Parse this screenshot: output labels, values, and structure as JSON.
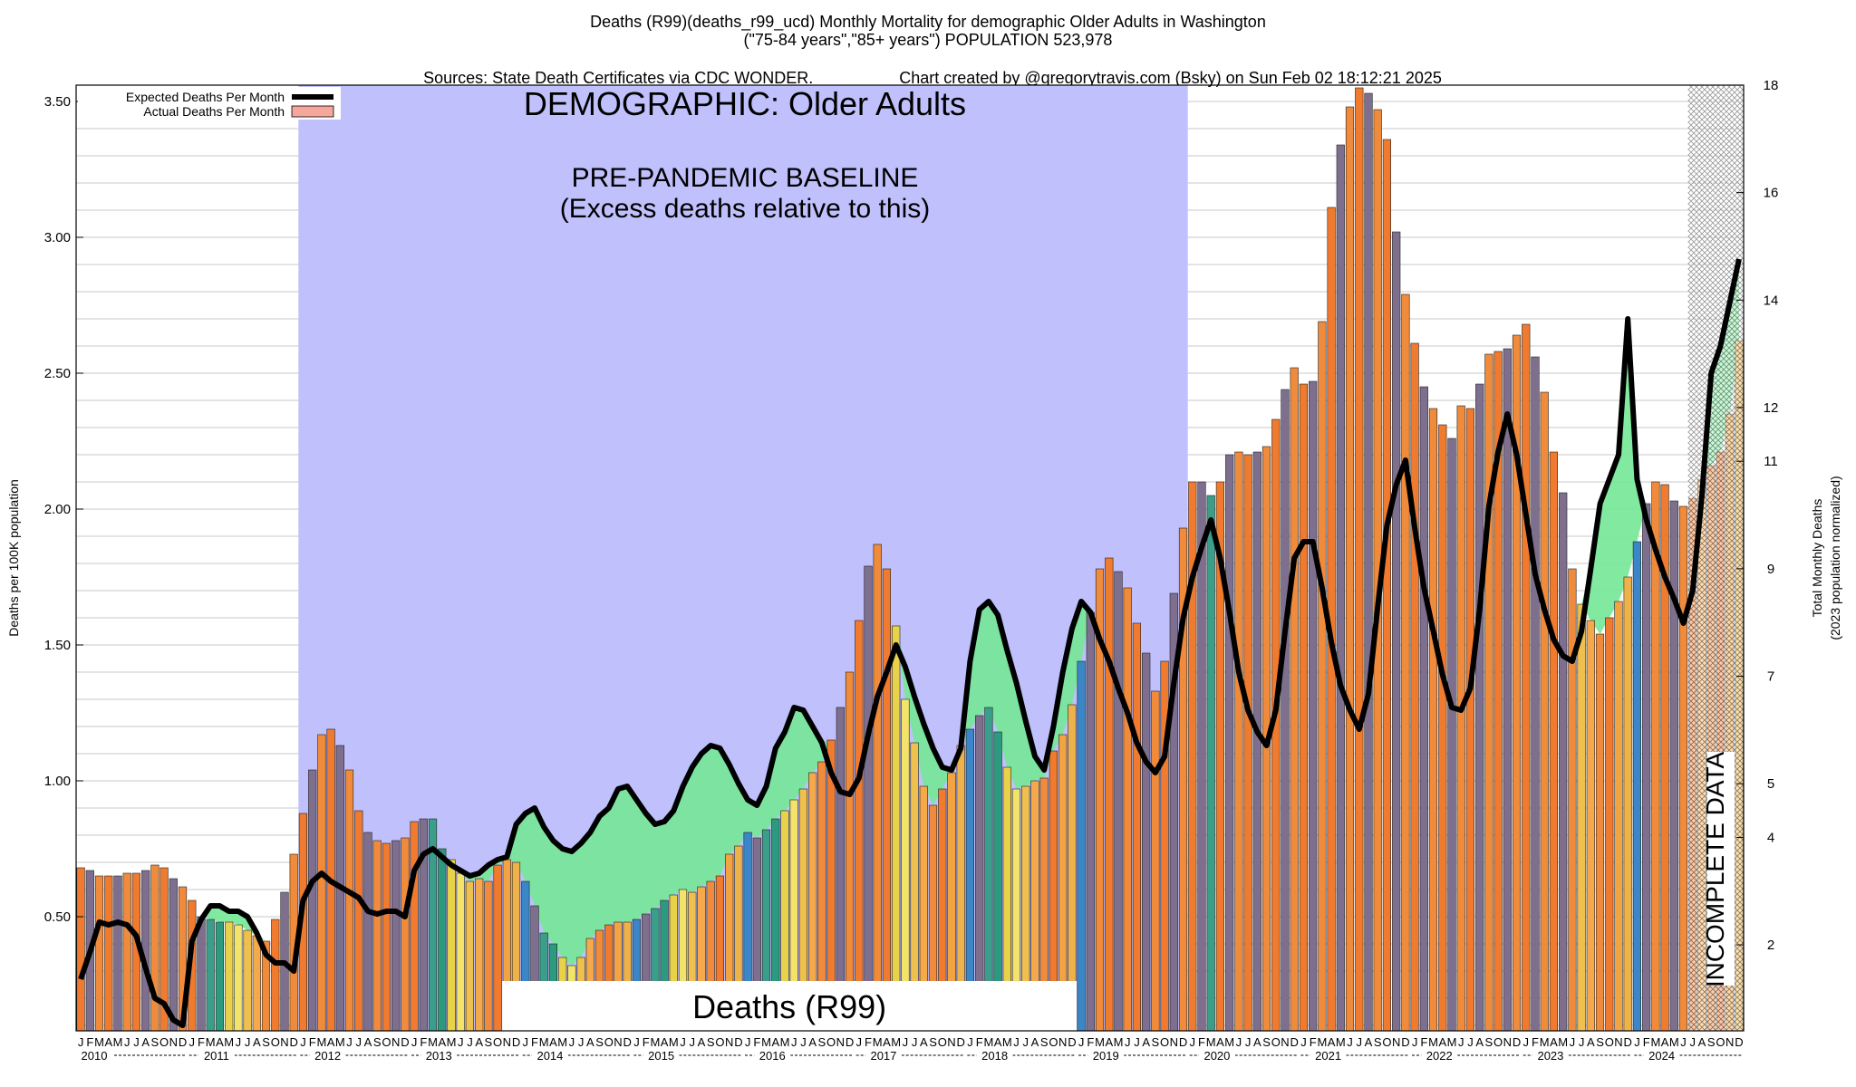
{
  "header": {
    "line1": "Deaths (R99)(deaths_r99_ucd) Monthly Mortality for demographic Older Adults in Washington",
    "line2": "(\"75-84 years\",\"85+ years\") POPULATION 523,978",
    "line3_left": "Sources: State Death Certificates via CDC WONDER.",
    "line3_right": "Chart created by @gregorytravis.com (Bsky) on Sun Feb 02 18:12:21 2025"
  },
  "chart_data": {
    "type": "bar",
    "title": "DEMOGRAPHIC: Older Adults",
    "baseline_label_1": "PRE-PANDEMIC BASELINE",
    "baseline_label_2": "(Excess deaths relative to this)",
    "bottom_label": "Deaths (R99)",
    "incomplete_label": "INCOMPLETE DATA",
    "ylabel": "Deaths per 100K population",
    "ylabel_right_1": "Total Monthly Deaths",
    "ylabel_right_2": "(2023 population normalized)",
    "ylim": [
      0.08,
      3.56
    ],
    "yticks": [
      0.5,
      1.0,
      1.5,
      2.0,
      2.5,
      3.0,
      3.5
    ],
    "ytick_labels": [
      "0.50",
      "1.00",
      "1.50",
      "2.00",
      "2.50",
      "3.00",
      "3.50"
    ],
    "y2ticks": [
      2,
      4,
      5,
      7,
      9,
      11,
      12,
      14,
      16,
      18
    ],
    "y2tick_labels": [
      "2",
      "4",
      "5",
      "7",
      "9",
      "11",
      "12",
      "14",
      "16",
      "18"
    ],
    "month_letters": [
      "J",
      "F",
      "M",
      "A",
      "M",
      "J",
      "J",
      "A",
      "S",
      "O",
      "N",
      "D"
    ],
    "years": [
      "2010",
      "2011",
      "2012",
      "2013",
      "2014",
      "2015",
      "2016",
      "2017",
      "2018",
      "2019",
      "2020",
      "2021",
      "2022",
      "2023",
      "2024"
    ],
    "legend": [
      {
        "label": "Expected Deaths Per Month",
        "color": "#000000"
      },
      {
        "label": "Actual Deaths Per Month",
        "color": "#f4a79a"
      }
    ],
    "baseline_period": {
      "start_month_index": 24,
      "end_month_index": 119
    },
    "incomplete_from_month_index": 174,
    "actual_deaths": [
      0.68,
      0.67,
      0.65,
      0.65,
      0.65,
      0.66,
      0.66,
      0.67,
      0.69,
      0.68,
      0.64,
      0.61,
      0.56,
      0.5,
      0.49,
      0.48,
      0.48,
      0.47,
      0.45,
      0.43,
      0.41,
      0.49,
      0.59,
      0.73,
      0.88,
      1.04,
      1.17,
      1.19,
      1.13,
      1.04,
      0.89,
      0.81,
      0.78,
      0.77,
      0.78,
      0.79,
      0.85,
      0.86,
      0.86,
      0.75,
      0.71,
      0.66,
      0.63,
      0.64,
      0.63,
      0.69,
      0.71,
      0.7,
      0.63,
      0.54,
      0.44,
      0.4,
      0.35,
      0.32,
      0.35,
      0.42,
      0.45,
      0.47,
      0.48,
      0.48,
      0.49,
      0.51,
      0.53,
      0.56,
      0.58,
      0.6,
      0.59,
      0.61,
      0.63,
      0.65,
      0.73,
      0.76,
      0.81,
      0.79,
      0.82,
      0.86,
      0.89,
      0.93,
      0.97,
      1.03,
      1.07,
      1.15,
      1.27,
      1.4,
      1.59,
      1.79,
      1.87,
      1.78,
      1.57,
      1.3,
      1.14,
      0.98,
      0.91,
      0.97,
      1.03,
      1.13,
      1.19,
      1.24,
      1.27,
      1.18,
      1.05,
      0.97,
      0.98,
      1.0,
      1.01,
      1.11,
      1.17,
      1.28,
      1.44,
      1.62,
      1.78,
      1.82,
      1.77,
      1.71,
      1.58,
      1.47,
      1.33,
      1.44,
      1.69,
      1.93,
      2.1,
      2.1,
      2.05,
      2.1,
      2.2,
      2.21,
      2.2,
      2.21,
      2.23,
      2.33,
      2.44,
      2.52,
      2.46,
      2.47,
      2.69,
      3.11,
      3.34,
      3.48,
      3.55,
      3.53,
      3.47,
      3.36,
      3.02,
      2.79,
      2.61,
      2.45,
      2.37,
      2.31,
      2.26,
      2.38,
      2.37,
      2.46,
      2.57,
      2.58,
      2.59,
      2.64,
      2.68,
      2.56,
      2.43,
      2.21,
      2.06,
      1.78,
      1.65,
      1.59,
      1.54,
      1.6,
      1.66,
      1.75,
      1.88,
      2.02,
      2.1,
      2.09,
      2.03,
      2.01,
      2.04,
      2.11,
      2.16,
      2.21,
      2.35,
      2.62
    ],
    "expected_deaths": [
      0.27,
      0.37,
      0.48,
      0.47,
      0.48,
      0.47,
      0.43,
      0.31,
      0.2,
      0.18,
      0.12,
      0.1,
      0.41,
      0.49,
      0.54,
      0.54,
      0.52,
      0.52,
      0.5,
      0.44,
      0.36,
      0.33,
      0.33,
      0.3,
      0.56,
      0.63,
      0.66,
      0.63,
      0.61,
      0.59,
      0.57,
      0.52,
      0.51,
      0.52,
      0.52,
      0.5,
      0.67,
      0.73,
      0.75,
      0.72,
      0.69,
      0.67,
      0.65,
      0.66,
      0.69,
      0.71,
      0.72,
      0.84,
      0.88,
      0.9,
      0.83,
      0.78,
      0.75,
      0.74,
      0.77,
      0.81,
      0.87,
      0.9,
      0.97,
      0.98,
      0.93,
      0.88,
      0.84,
      0.85,
      0.89,
      0.98,
      1.05,
      1.1,
      1.13,
      1.12,
      1.06,
      0.99,
      0.93,
      0.91,
      0.98,
      1.12,
      1.18,
      1.27,
      1.26,
      1.2,
      1.14,
      1.03,
      0.96,
      0.95,
      1.01,
      1.17,
      1.31,
      1.4,
      1.5,
      1.42,
      1.31,
      1.21,
      1.12,
      1.05,
      1.04,
      1.12,
      1.44,
      1.63,
      1.66,
      1.61,
      1.48,
      1.36,
      1.22,
      1.09,
      1.04,
      1.2,
      1.4,
      1.56,
      1.66,
      1.62,
      1.52,
      1.44,
      1.34,
      1.25,
      1.14,
      1.07,
      1.03,
      1.09,
      1.36,
      1.6,
      1.75,
      1.86,
      1.96,
      1.82,
      1.62,
      1.4,
      1.26,
      1.18,
      1.13,
      1.26,
      1.55,
      1.82,
      1.88,
      1.88,
      1.71,
      1.51,
      1.35,
      1.26,
      1.19,
      1.32,
      1.64,
      1.94,
      2.09,
      2.18,
      1.93,
      1.71,
      1.55,
      1.39,
      1.27,
      1.26,
      1.34,
      1.63,
      2.01,
      2.21,
      2.35,
      2.2,
      1.98,
      1.76,
      1.63,
      1.52,
      1.46,
      1.44,
      1.55,
      1.78,
      2.02,
      2.11,
      2.2,
      2.7,
      2.11,
      1.96,
      1.85,
      1.75,
      1.67,
      1.58,
      1.7,
      2.05,
      2.5,
      2.6,
      2.76,
      2.92
    ]
  }
}
